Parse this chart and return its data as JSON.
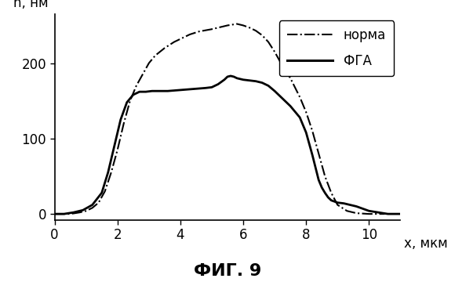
{
  "title": "ФИГ. 9",
  "xlabel": "x, мкм",
  "ylabel": "h, нм",
  "xlim": [
    0,
    11.0
  ],
  "ylim": [
    -8,
    265
  ],
  "xticks": [
    0,
    2,
    4,
    6,
    8,
    10
  ],
  "yticks": [
    0,
    100,
    200
  ],
  "legend": [
    "норма",
    "ФГА"
  ],
  "norma_color": "#000000",
  "fga_color": "#000000",
  "background": "#ffffff",
  "norma_x": [
    0.0,
    0.2,
    0.5,
    0.8,
    1.0,
    1.2,
    1.4,
    1.6,
    1.8,
    2.0,
    2.2,
    2.4,
    2.6,
    2.8,
    3.0,
    3.2,
    3.5,
    3.8,
    4.0,
    4.3,
    4.6,
    5.0,
    5.2,
    5.5,
    5.8,
    6.0,
    6.2,
    6.4,
    6.6,
    6.8,
    7.0,
    7.2,
    7.5,
    7.8,
    8.0,
    8.2,
    8.4,
    8.6,
    8.8,
    9.0,
    9.3,
    9.6,
    10.0,
    10.5
  ],
  "norma_y": [
    0,
    0,
    0,
    2,
    4,
    8,
    15,
    30,
    55,
    85,
    120,
    150,
    170,
    185,
    200,
    210,
    220,
    228,
    232,
    238,
    242,
    245,
    247,
    250,
    252,
    250,
    247,
    243,
    237,
    228,
    215,
    200,
    180,
    155,
    135,
    110,
    80,
    50,
    28,
    12,
    4,
    1,
    0,
    0
  ],
  "fga_x": [
    0.0,
    0.3,
    0.6,
    0.9,
    1.2,
    1.5,
    1.7,
    1.9,
    2.1,
    2.3,
    2.5,
    2.7,
    2.9,
    3.1,
    3.3,
    3.6,
    3.9,
    4.2,
    4.5,
    4.8,
    5.0,
    5.2,
    5.4,
    5.5,
    5.6,
    5.7,
    5.8,
    6.0,
    6.2,
    6.4,
    6.6,
    6.8,
    7.0,
    7.2,
    7.5,
    7.8,
    8.0,
    8.2,
    8.4,
    8.5,
    8.6,
    8.7,
    8.8,
    9.0,
    9.2,
    9.4,
    9.6,
    9.8,
    10.0,
    10.3,
    10.6,
    11.0
  ],
  "fga_y": [
    0,
    0,
    2,
    5,
    12,
    28,
    55,
    90,
    125,
    148,
    158,
    162,
    162,
    163,
    163,
    163,
    164,
    165,
    166,
    167,
    168,
    172,
    178,
    182,
    183,
    182,
    180,
    178,
    177,
    176,
    174,
    170,
    163,
    155,
    143,
    128,
    108,
    78,
    45,
    35,
    28,
    22,
    18,
    15,
    14,
    12,
    10,
    7,
    4,
    2,
    0,
    0
  ]
}
